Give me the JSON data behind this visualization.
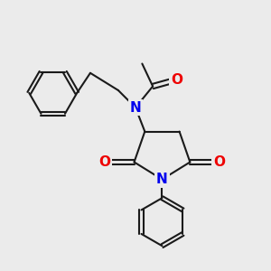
{
  "bg_color": "#ebebeb",
  "bond_color": "#1a1a1a",
  "N_color": "#0000ee",
  "O_color": "#ee0000",
  "bond_width": 1.5,
  "font_size_atom": 10,
  "fig_size": [
    3.0,
    3.0
  ],
  "xlim": [
    0,
    10
  ],
  "ylim": [
    0,
    10
  ]
}
